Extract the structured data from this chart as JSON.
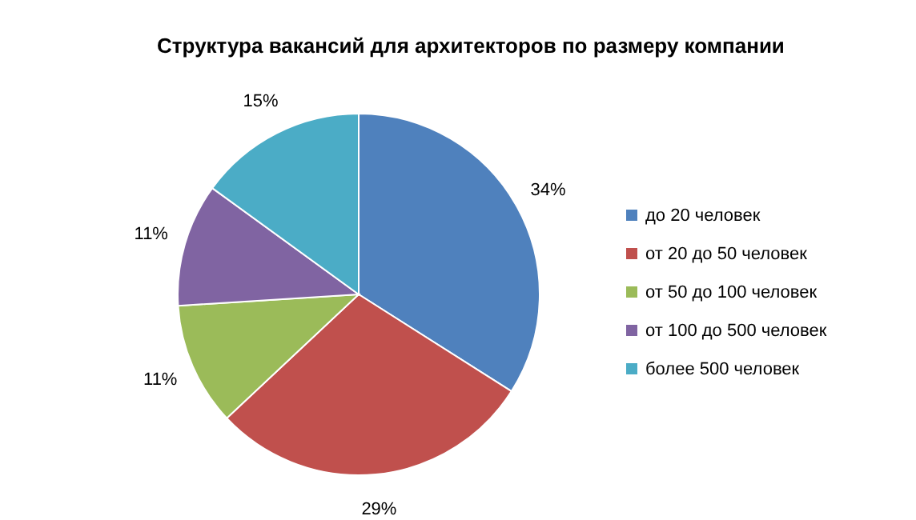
{
  "chart_data": {
    "type": "pie",
    "title": "Структура вакансий для архитекторов по размеру компании",
    "categories": [
      "до 20 человек",
      "от 20 до 50 человек",
      "от 50 до 100 человек",
      "от 100 до 500 человек",
      "более 500 человек"
    ],
    "values": [
      34,
      29,
      11,
      11,
      15
    ],
    "colors": [
      "#4f81bd",
      "#c0504d",
      "#9bbb59",
      "#8064a2",
      "#4bacc6"
    ],
    "value_labels": [
      "34%",
      "29%",
      "11%",
      "11%",
      "15%"
    ],
    "legend": "right"
  }
}
